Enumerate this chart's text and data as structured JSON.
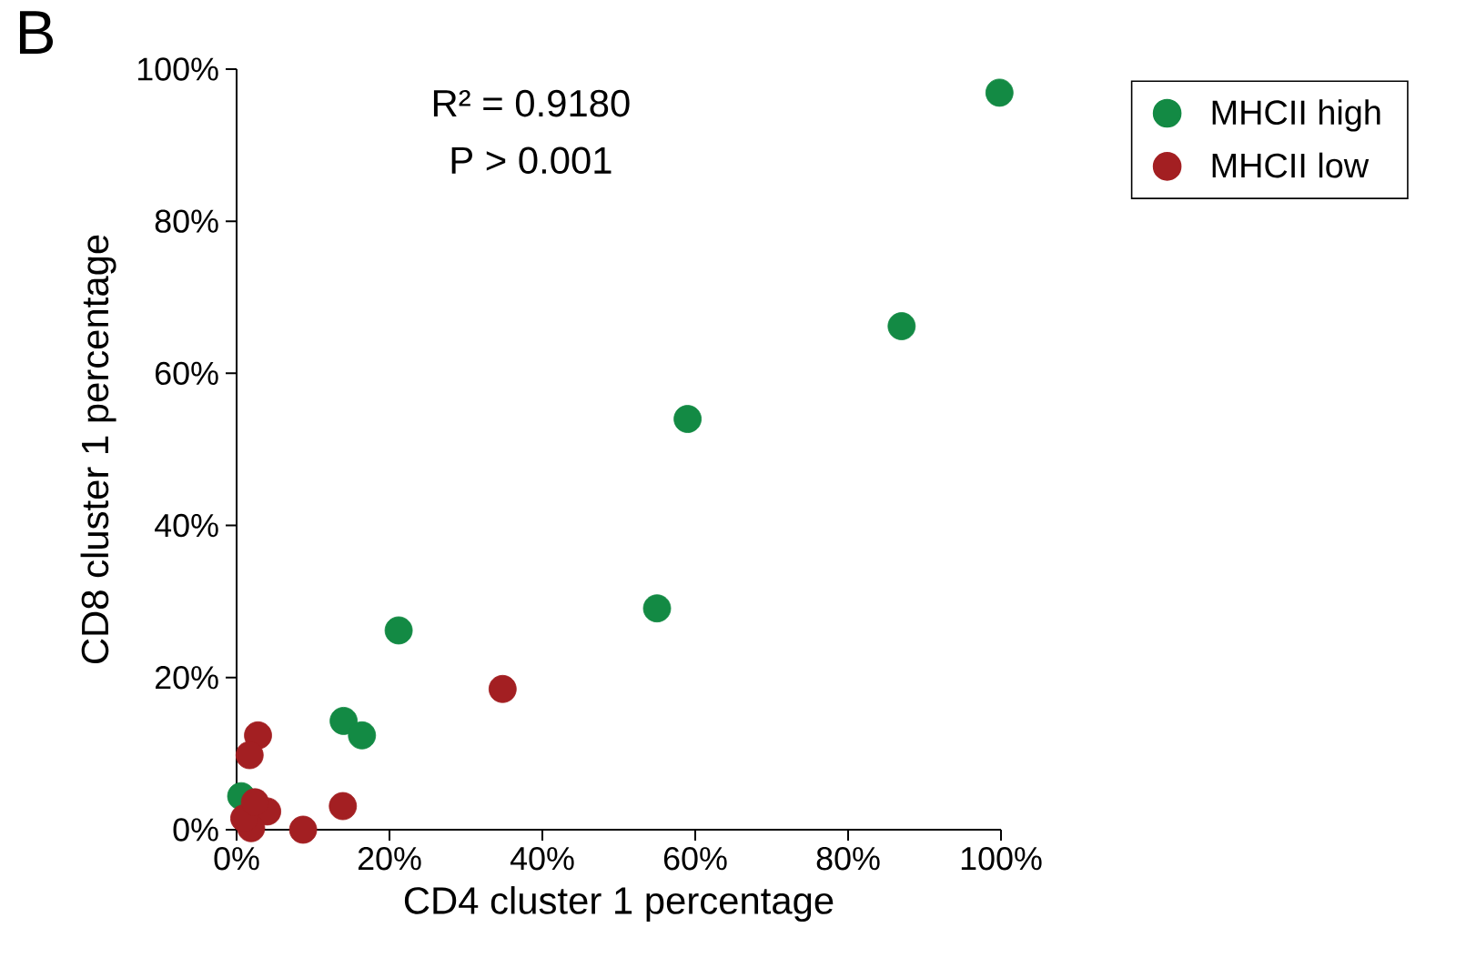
{
  "chart_data": {
    "type": "scatter",
    "xlabel": "CD4 cluster 1 percentage",
    "ylabel": "CD8 cluster 1 percentage",
    "annotations": [
      "B",
      "R² = 0.9180",
      "P > 0.001"
    ],
    "xlim": [
      0,
      100
    ],
    "ylim": [
      0,
      100
    ],
    "xticks": [
      {
        "value": 0,
        "label": "0%"
      },
      {
        "value": 20,
        "label": "20%"
      },
      {
        "value": 40,
        "label": "40%"
      },
      {
        "value": 60,
        "label": "60%"
      },
      {
        "value": 80,
        "label": "80%"
      },
      {
        "value": 100,
        "label": "100%"
      }
    ],
    "yticks": [
      {
        "value": 0,
        "label": "0%"
      },
      {
        "value": 20,
        "label": "20%"
      },
      {
        "value": 40,
        "label": "40%"
      },
      {
        "value": 60,
        "label": "60%"
      },
      {
        "value": 80,
        "label": "80%"
      },
      {
        "value": 100,
        "label": "100%"
      }
    ],
    "series": [
      {
        "name": "MHCII high",
        "color": "#138a44",
        "x": [
          99.8,
          87,
          59,
          55,
          21.2,
          14,
          16.4,
          0.6
        ],
        "values": [
          96.9,
          66.2,
          54,
          29.1,
          26.2,
          14.3,
          12.4,
          4.4
        ]
      },
      {
        "name": "MHCII low",
        "color": "#a31f22",
        "x": [
          34.8,
          2.8,
          1.7,
          4,
          1.9,
          1,
          8.7,
          13.9,
          2.4
        ],
        "values": [
          18.5,
          12.4,
          9.8,
          2.4,
          0.2,
          1.5,
          0,
          3.1,
          3.6
        ]
      }
    ],
    "marker": "circle",
    "legend": "top right",
    "grid": false
  }
}
